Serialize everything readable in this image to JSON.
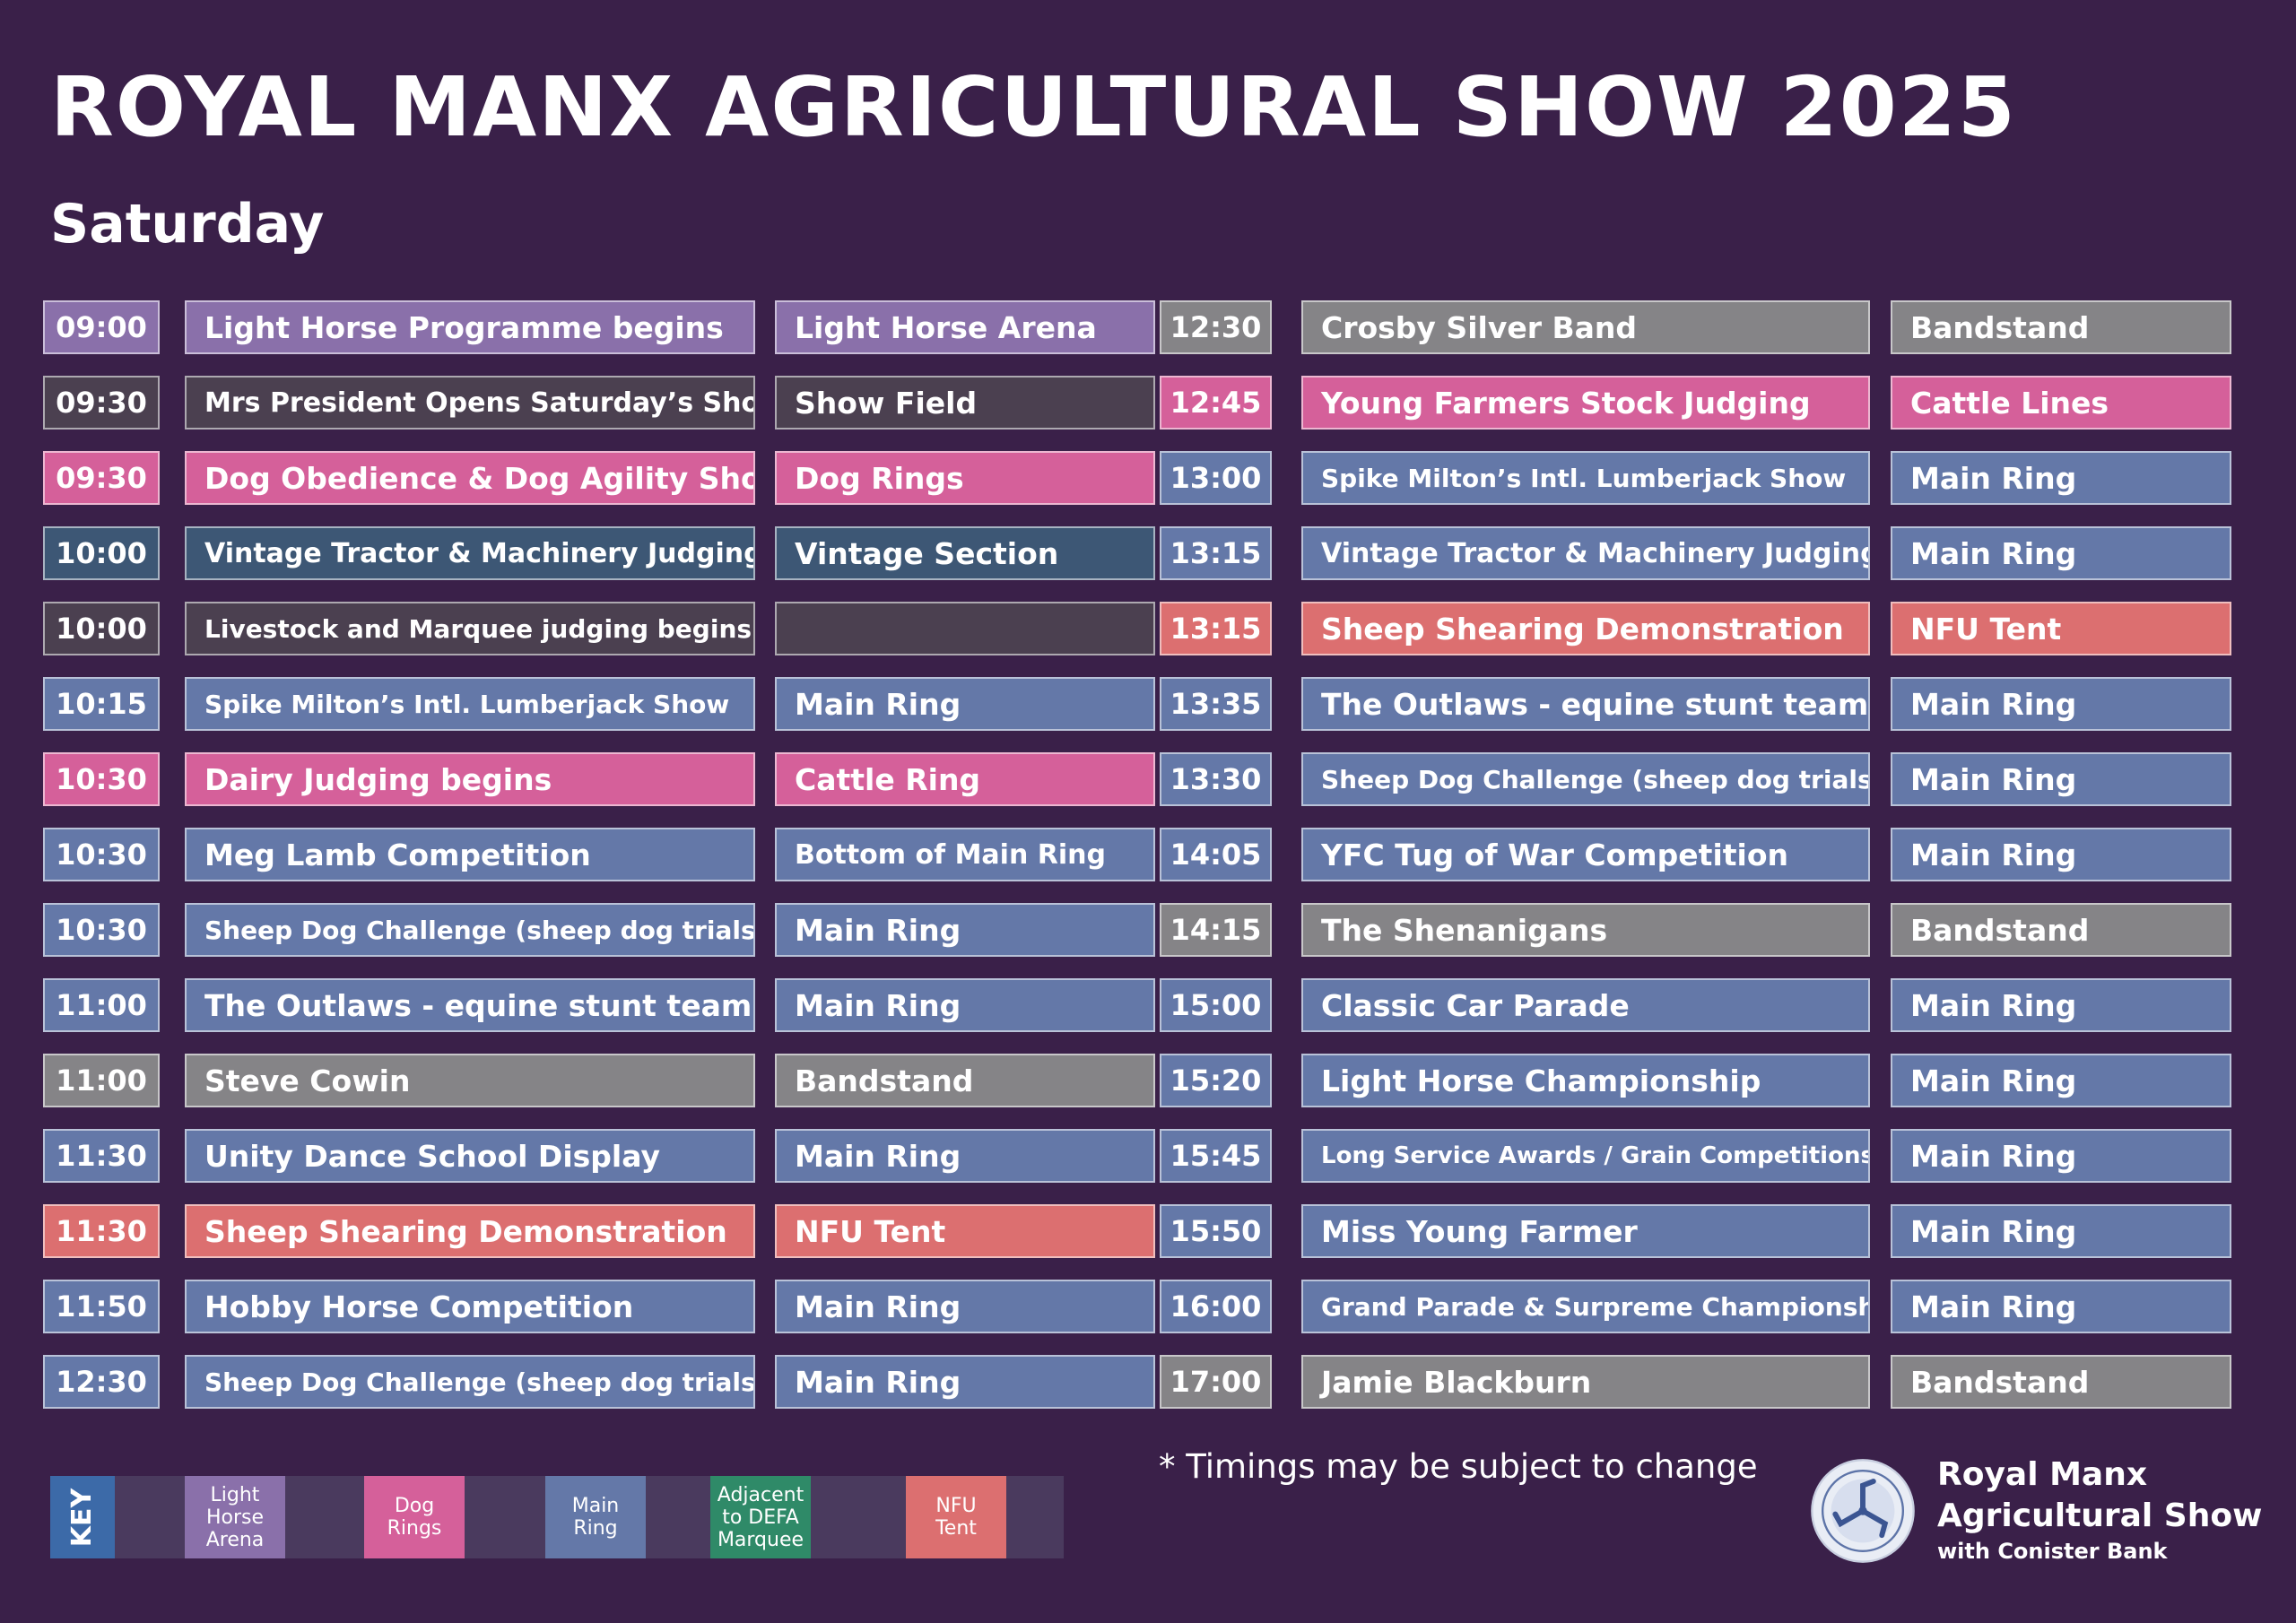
{
  "title": "ROYAL MANX AGRICULTURAL SHOW 2025",
  "subtitle": "Saturday",
  "colors": {
    "purple": "#8a70aa",
    "dark": "#4b4050",
    "pink": "#d5609a",
    "navy": "#3d5775",
    "blue": "#6478a8",
    "grey": "#858487",
    "salmon": "#dc6f70",
    "green": "#2f8a68"
  },
  "schedule_left": [
    {
      "time": "09:00",
      "event": "Light Horse Programme begins",
      "venue": "Light Horse Arena",
      "color": "purple"
    },
    {
      "time": "09:30",
      "event": "Mrs President Opens Saturday’s Show",
      "venue": "Show Field",
      "color": "dark"
    },
    {
      "time": "09:30",
      "event": "Dog Obedience & Dog Agility Show",
      "venue": "Dog Rings",
      "color": "pink"
    },
    {
      "time": "10:00",
      "event": "Vintage Tractor & Machinery Judging",
      "venue": "Vintage Section",
      "color": "navy"
    },
    {
      "time": "10:00",
      "event": "Livestock and Marquee judging begins",
      "venue": "",
      "color": "dark"
    },
    {
      "time": "10:15",
      "event": "Spike Milton’s Intl. Lumberjack Show",
      "venue": "Main Ring",
      "color": "blue"
    },
    {
      "time": "10:30",
      "event": "Dairy Judging begins",
      "venue": "Cattle Ring",
      "color": "pink"
    },
    {
      "time": "10:30",
      "event": "Meg Lamb Competition",
      "venue": "Bottom of Main Ring",
      "color": "blue"
    },
    {
      "time": "10:30",
      "event": "Sheep Dog Challenge (sheep dog trials)",
      "venue": "Main Ring",
      "color": "blue"
    },
    {
      "time": "11:00",
      "event": "The Outlaws - equine stunt team",
      "venue": "Main Ring",
      "color": "blue"
    },
    {
      "time": "11:00",
      "event": "Steve Cowin",
      "venue": "Bandstand",
      "color": "grey"
    },
    {
      "time": "11:30",
      "event": "Unity Dance School Display",
      "venue": "Main Ring",
      "color": "blue"
    },
    {
      "time": "11:30",
      "event": "Sheep Shearing Demonstration",
      "venue": "NFU Tent",
      "color": "salmon"
    },
    {
      "time": "11:50",
      "event": "Hobby Horse Competition",
      "venue": "Main Ring",
      "color": "blue"
    },
    {
      "time": "12:30",
      "event": "Sheep Dog Challenge (sheep dog trials)",
      "venue": "Main Ring",
      "color": "blue"
    }
  ],
  "schedule_right": [
    {
      "time": "12:30",
      "event": "Crosby Silver Band",
      "venue": "Bandstand",
      "color": "grey"
    },
    {
      "time": "12:45",
      "event": "Young Farmers Stock Judging",
      "venue": "Cattle Lines",
      "color": "pink"
    },
    {
      "time": "13:00",
      "event": "Spike Milton’s Intl. Lumberjack Show",
      "venue": "Main Ring",
      "color": "blue"
    },
    {
      "time": "13:15",
      "event": "Vintage Tractor & Machinery Judging",
      "venue": "Main Ring",
      "color": "blue"
    },
    {
      "time": "13:15",
      "event": "Sheep Shearing Demonstration",
      "venue": "NFU Tent",
      "color": "salmon"
    },
    {
      "time": "13:35",
      "event": "The Outlaws - equine stunt team",
      "venue": "Main Ring",
      "color": "blue"
    },
    {
      "time": "13:30",
      "event": "Sheep Dog Challenge (sheep dog trials)",
      "venue": "Main Ring",
      "color": "blue"
    },
    {
      "time": "14:05",
      "event": "YFC Tug of War Competition",
      "venue": "Main Ring",
      "color": "blue"
    },
    {
      "time": "14:15",
      "event": "The Shenanigans",
      "venue": "Bandstand",
      "color": "grey"
    },
    {
      "time": "15:00",
      "event": "Classic Car Parade",
      "venue": "Main Ring",
      "color": "blue"
    },
    {
      "time": "15:20",
      "event": "Light Horse Championship",
      "venue": "Main Ring",
      "color": "blue"
    },
    {
      "time": "15:45",
      "event": "Long Service Awards / Grain Competitions",
      "venue": "Main Ring",
      "color": "blue"
    },
    {
      "time": "15:50",
      "event": "Miss Young Farmer",
      "venue": "Main Ring",
      "color": "blue"
    },
    {
      "time": "16:00",
      "event": "Grand Parade & Surpreme Championship",
      "venue": "Main Ring",
      "color": "blue"
    },
    {
      "time": "17:00",
      "event": "Jamie Blackburn",
      "venue": "Bandstand",
      "color": "grey"
    }
  ],
  "note": "* Timings may be subject to change",
  "key": {
    "label": "KEY",
    "items": [
      {
        "label": "Light\nHorse\nArena",
        "color": "purple"
      },
      {
        "label": "Dog\nRings",
        "color": "pink"
      },
      {
        "label": "Main\nRing",
        "color": "blue"
      },
      {
        "label": "Adjacent\nto DEFA\nMarquee",
        "color": "green"
      },
      {
        "label": "NFU\nTent",
        "color": "salmon"
      }
    ]
  },
  "brand": {
    "name": "Royal Manx\nAgricultural Show",
    "sub": "with Conister Bank"
  }
}
